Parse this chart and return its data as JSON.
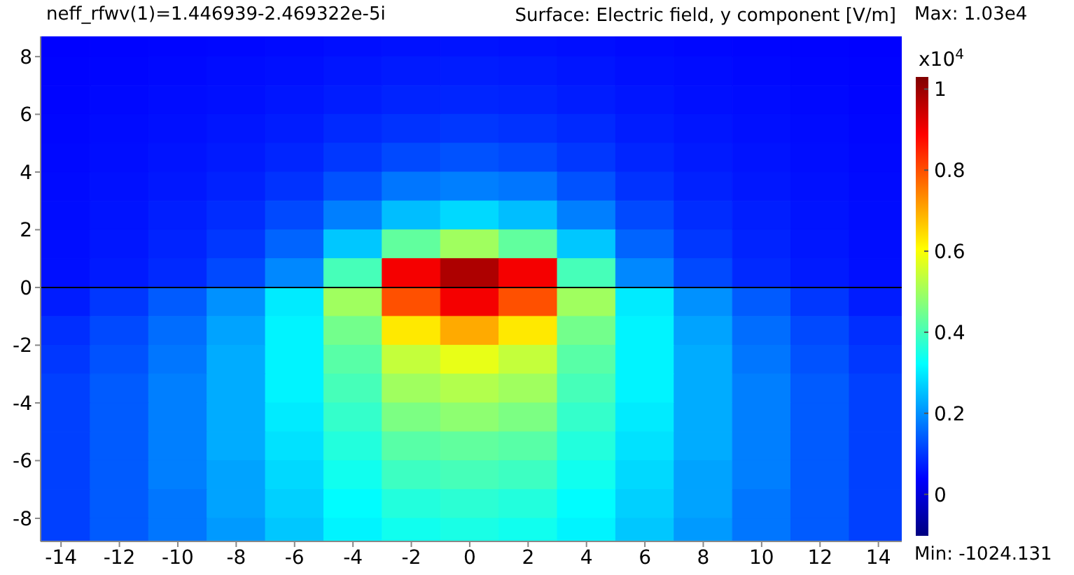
{
  "chart_data": {
    "type": "heatmap",
    "title": "Surface: Electric field, y component [V/m]",
    "annotations": [
      "neff_rfwv(1)=1.446939-2.469322e-5i",
      "Max: 1.03e4",
      "Min: -1024.131"
    ],
    "x": [
      -14,
      -12,
      -10,
      -8,
      -6,
      -4,
      -2,
      0,
      2,
      4,
      6,
      8,
      10,
      12,
      14
    ],
    "y": [
      8.5,
      7.5,
      6.5,
      5.5,
      4.5,
      3.5,
      2.5,
      1.5,
      0.5,
      -0.5,
      -1.5,
      -2.5,
      -3.5,
      -4.5,
      -5.5,
      -6.5,
      -7.5,
      -8.5
    ],
    "cells": [
      [
        0.04,
        0.042,
        0.045,
        0.047,
        0.05,
        0.055,
        0.058,
        0.06,
        0.058,
        0.055,
        0.05,
        0.047,
        0.045,
        0.042,
        0.04
      ],
      [
        0.042,
        0.045,
        0.048,
        0.052,
        0.056,
        0.062,
        0.068,
        0.07,
        0.068,
        0.062,
        0.056,
        0.052,
        0.048,
        0.045,
        0.042
      ],
      [
        0.044,
        0.048,
        0.052,
        0.056,
        0.062,
        0.07,
        0.078,
        0.08,
        0.078,
        0.07,
        0.062,
        0.056,
        0.052,
        0.048,
        0.044
      ],
      [
        0.046,
        0.051,
        0.056,
        0.062,
        0.07,
        0.085,
        0.095,
        0.1,
        0.095,
        0.085,
        0.07,
        0.062,
        0.056,
        0.051,
        0.046
      ],
      [
        0.048,
        0.054,
        0.06,
        0.068,
        0.08,
        0.1,
        0.12,
        0.13,
        0.12,
        0.1,
        0.08,
        0.068,
        0.06,
        0.054,
        0.048
      ],
      [
        0.05,
        0.057,
        0.065,
        0.076,
        0.095,
        0.13,
        0.17,
        0.18,
        0.17,
        0.13,
        0.095,
        0.076,
        0.065,
        0.057,
        0.05
      ],
      [
        0.052,
        0.06,
        0.072,
        0.088,
        0.12,
        0.18,
        0.25,
        0.28,
        0.25,
        0.18,
        0.12,
        0.088,
        0.072,
        0.06,
        0.052
      ],
      [
        0.054,
        0.064,
        0.078,
        0.1,
        0.15,
        0.26,
        0.43,
        0.5,
        0.43,
        0.26,
        0.15,
        0.1,
        0.078,
        0.064,
        0.054
      ],
      [
        0.056,
        0.068,
        0.085,
        0.12,
        0.19,
        0.4,
        0.9,
        0.98,
        0.9,
        0.4,
        0.19,
        0.12,
        0.085,
        0.068,
        0.056
      ],
      [
        0.07,
        0.1,
        0.14,
        0.2,
        0.3,
        0.5,
        0.8,
        0.9,
        0.8,
        0.5,
        0.3,
        0.2,
        0.14,
        0.1,
        0.07
      ],
      [
        0.09,
        0.12,
        0.16,
        0.22,
        0.31,
        0.45,
        0.63,
        0.7,
        0.63,
        0.45,
        0.31,
        0.22,
        0.16,
        0.12,
        0.09
      ],
      [
        0.1,
        0.13,
        0.17,
        0.23,
        0.31,
        0.42,
        0.54,
        0.58,
        0.54,
        0.42,
        0.31,
        0.23,
        0.17,
        0.13,
        0.1
      ],
      [
        0.11,
        0.14,
        0.18,
        0.23,
        0.31,
        0.4,
        0.5,
        0.52,
        0.5,
        0.4,
        0.31,
        0.23,
        0.18,
        0.14,
        0.11
      ],
      [
        0.11,
        0.14,
        0.18,
        0.23,
        0.3,
        0.38,
        0.46,
        0.48,
        0.46,
        0.38,
        0.3,
        0.23,
        0.18,
        0.14,
        0.11
      ],
      [
        0.11,
        0.14,
        0.18,
        0.23,
        0.29,
        0.36,
        0.42,
        0.43,
        0.42,
        0.36,
        0.29,
        0.23,
        0.18,
        0.14,
        0.11
      ],
      [
        0.11,
        0.14,
        0.18,
        0.22,
        0.28,
        0.34,
        0.39,
        0.4,
        0.39,
        0.34,
        0.28,
        0.22,
        0.18,
        0.14,
        0.11
      ],
      [
        0.11,
        0.14,
        0.17,
        0.22,
        0.27,
        0.32,
        0.36,
        0.37,
        0.36,
        0.32,
        0.27,
        0.22,
        0.17,
        0.14,
        0.11
      ],
      [
        0.11,
        0.14,
        0.17,
        0.21,
        0.26,
        0.31,
        0.34,
        0.35,
        0.34,
        0.31,
        0.26,
        0.21,
        0.17,
        0.14,
        0.11
      ]
    ],
    "clim": [
      -0.1024131,
      1.03
    ],
    "cticks": [
      0,
      0.2,
      0.4,
      0.6,
      0.8,
      1
    ],
    "clabel": "x10$^{4}$",
    "xlim": [
      -14.7,
      14.8
    ],
    "ylim": [
      -8.8,
      8.7
    ],
    "xticks": [
      -14,
      -12,
      -10,
      -8,
      -6,
      -4,
      -2,
      0,
      2,
      4,
      6,
      8,
      10,
      12,
      14
    ],
    "yticks": [
      -8,
      -6,
      -4,
      -2,
      0,
      2,
      4,
      6,
      8
    ],
    "ref_lines": [
      {
        "axis": "y",
        "value": 0,
        "color": "#000000"
      }
    ]
  }
}
